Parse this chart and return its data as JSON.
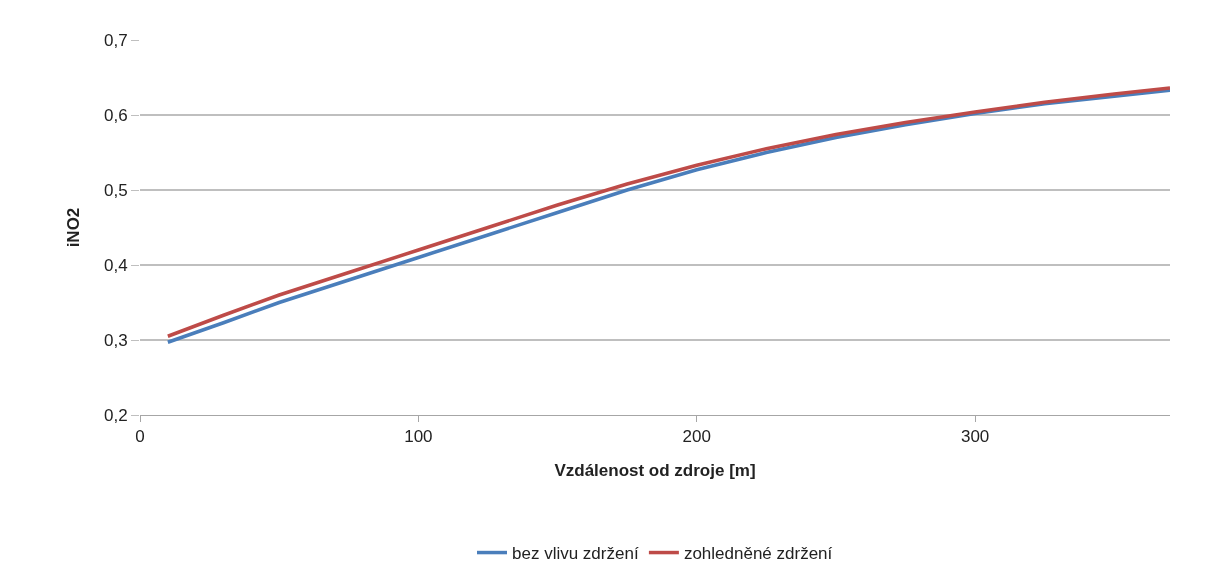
{
  "chart_data": {
    "type": "line",
    "xlabel": "Vzdálenost od zdroje [m]",
    "ylabel": "iNO2",
    "x": [
      10,
      30,
      50,
      75,
      100,
      125,
      150,
      175,
      200,
      225,
      250,
      275,
      300,
      325,
      350,
      370
    ],
    "series": [
      {
        "name": "bez vlivu zdržení",
        "color": "#4a7ebb",
        "values": [
          0.297,
          0.323,
          0.35,
          0.38,
          0.41,
          0.44,
          0.47,
          0.5,
          0.527,
          0.55,
          0.57,
          0.587,
          0.602,
          0.615,
          0.625,
          0.633
        ]
      },
      {
        "name": "zohledněné zdržení",
        "color": "#be4b48",
        "values": [
          0.305,
          0.333,
          0.36,
          0.39,
          0.42,
          0.45,
          0.48,
          0.508,
          0.533,
          0.555,
          0.574,
          0.59,
          0.604,
          0.617,
          0.628,
          0.636
        ]
      }
    ],
    "xlim": [
      0,
      370
    ],
    "xticks": [
      0,
      100,
      200,
      300
    ],
    "ylim": [
      0.2,
      0.7
    ],
    "yticks": [
      {
        "value": 0.2,
        "label": "0,2"
      },
      {
        "value": 0.3,
        "label": "0,3"
      },
      {
        "value": 0.4,
        "label": "0,4"
      },
      {
        "value": 0.5,
        "label": "0,5"
      },
      {
        "value": 0.6,
        "label": "0,6"
      },
      {
        "value": 0.7,
        "label": "0,7"
      }
    ],
    "grid": "y",
    "legend": "bottom",
    "marker": "none",
    "line_style": "solid"
  }
}
